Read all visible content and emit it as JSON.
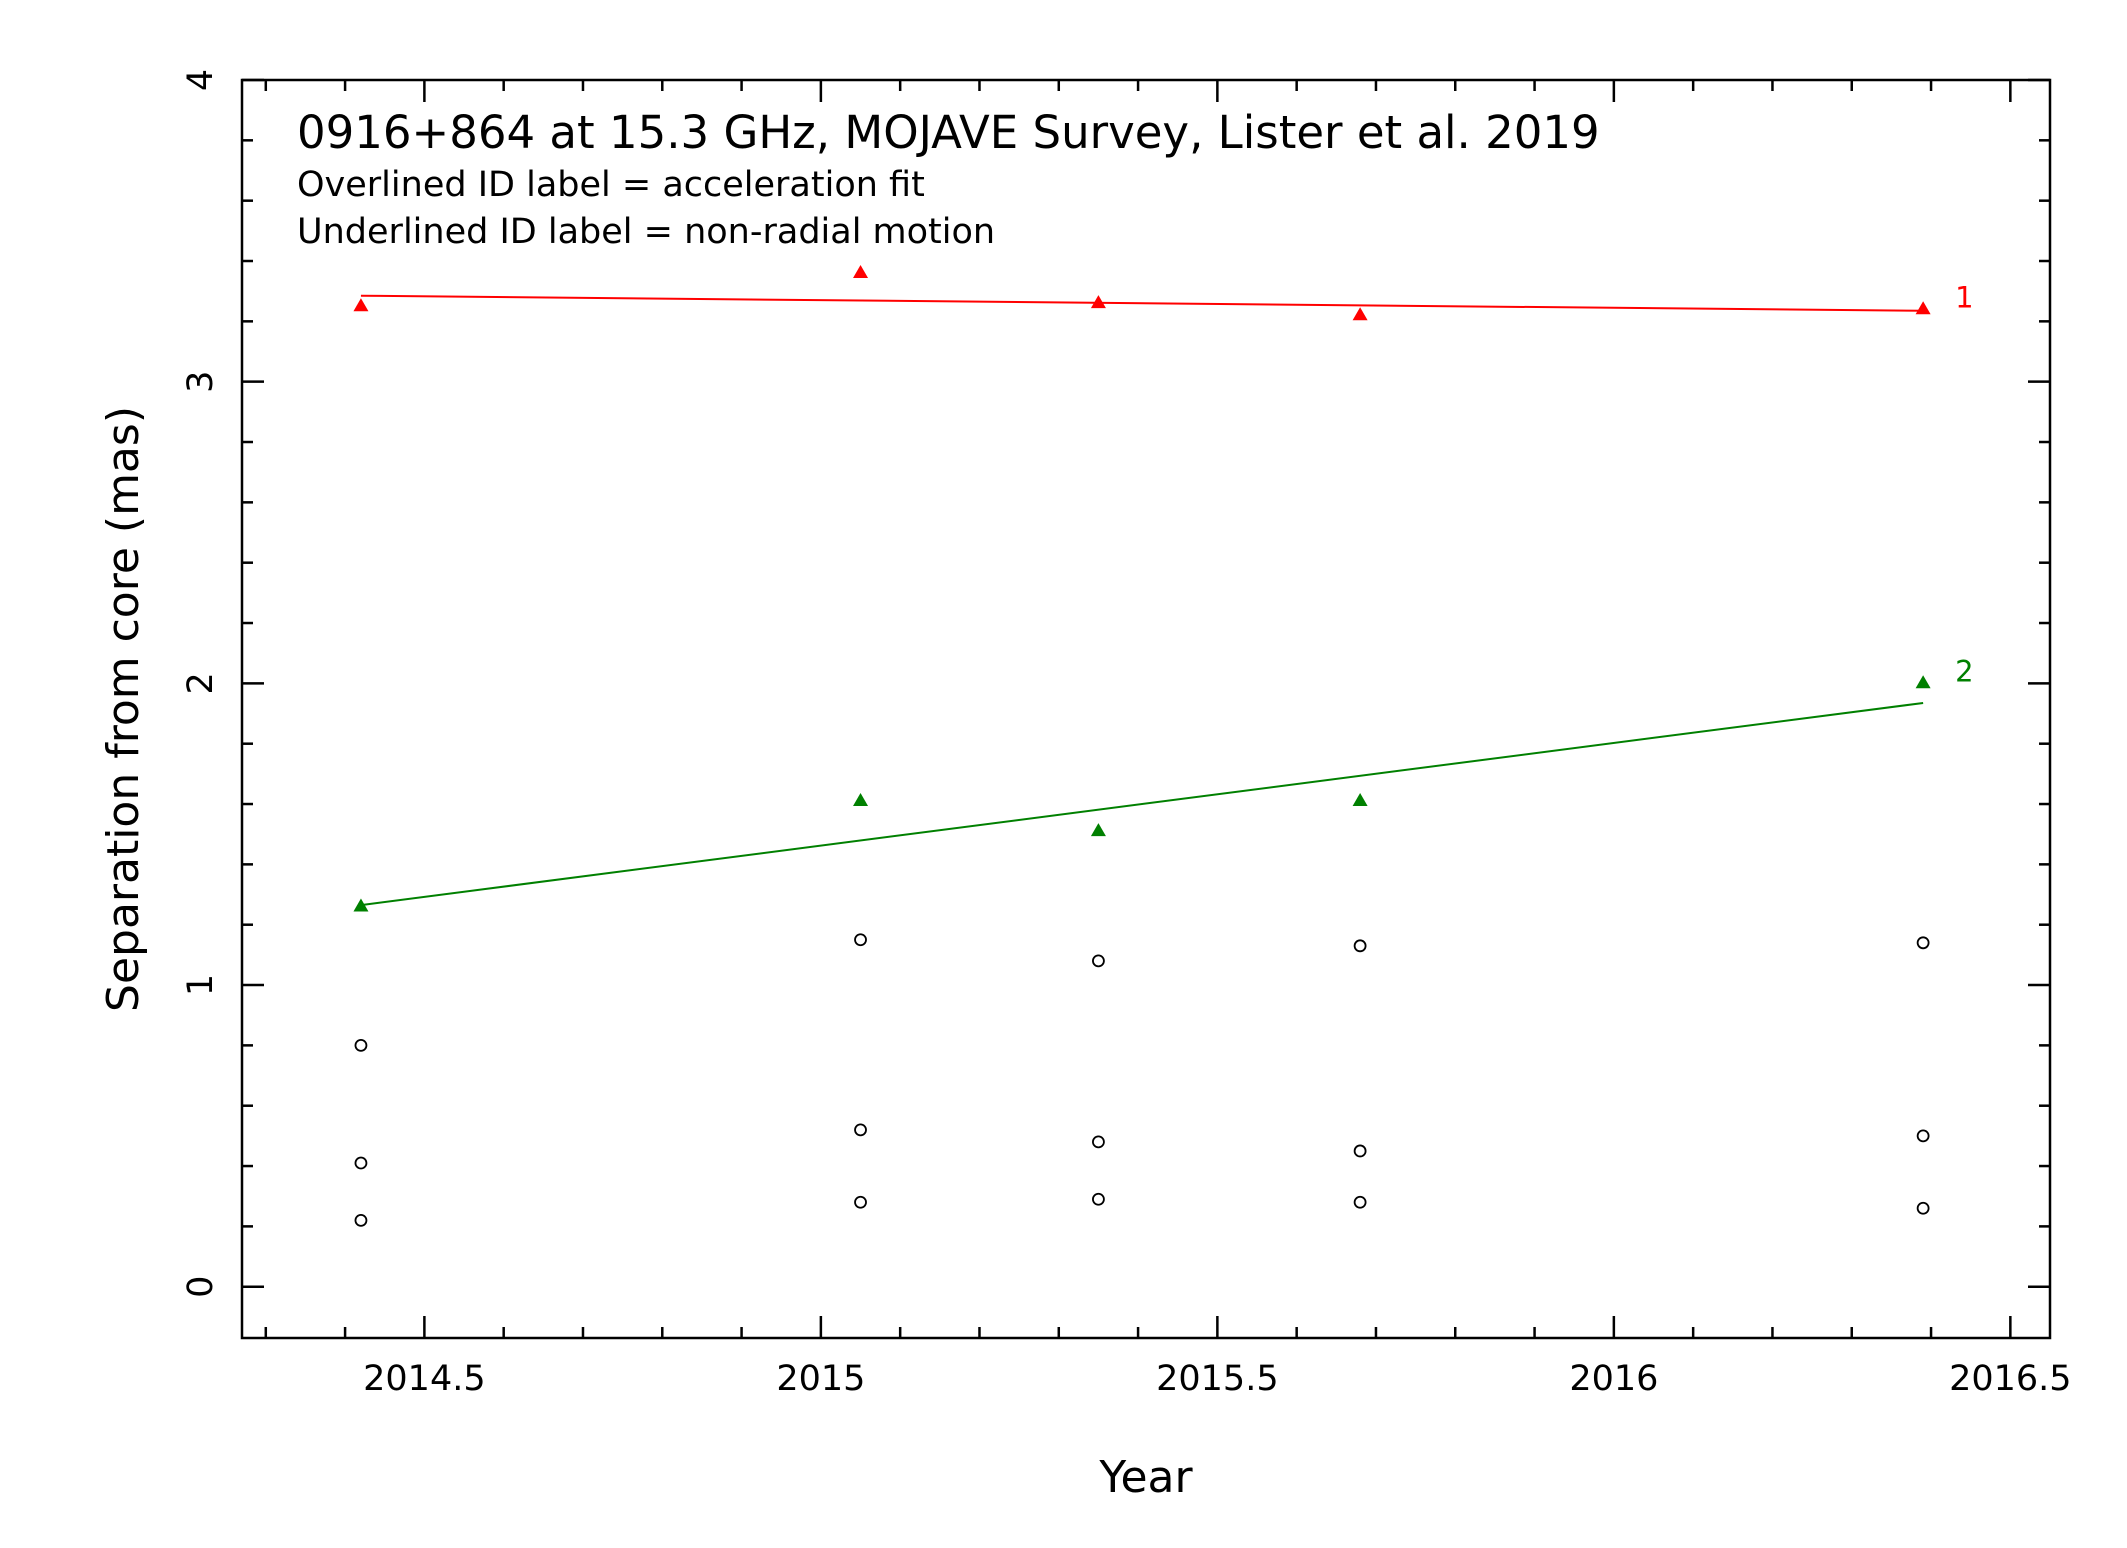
{
  "chart_data": {
    "type": "scatter",
    "title": "0916+864 at 15.3 GHz, MOJAVE Survey, Lister et al. 2019",
    "subtitles": [
      "Overlined ID label = acceleration fit",
      "Underlined ID label = non-radial motion"
    ],
    "xlabel": "Year",
    "ylabel": "Separation from core (mas)",
    "xlim": [
      2014.27,
      2016.55
    ],
    "ylim": [
      -0.17,
      4.0
    ],
    "x_ticks": [
      2014.5,
      2015,
      2015.5,
      2016,
      2016.5
    ],
    "x_tick_labels": [
      "2014.5",
      "2015",
      "2015.5",
      "2016",
      "2016.5"
    ],
    "y_ticks": [
      0,
      1,
      2,
      3,
      4
    ],
    "y_tick_labels": [
      "0",
      "1",
      "2",
      "3",
      "4"
    ],
    "grid": false,
    "series": [
      {
        "name": "1",
        "color": "#ff0000",
        "marker": "triangle",
        "x": [
          2014.42,
          2015.05,
          2015.35,
          2015.68,
          2016.39
        ],
        "y": [
          3.25,
          3.36,
          3.26,
          3.22,
          3.24
        ],
        "fit": {
          "x": [
            2014.42,
            2016.39
          ],
          "y": [
            3.285,
            3.235
          ]
        }
      },
      {
        "name": "2",
        "color": "#008000",
        "marker": "triangle",
        "x": [
          2014.42,
          2015.05,
          2015.35,
          2015.68,
          2016.39
        ],
        "y": [
          1.26,
          1.61,
          1.51,
          1.61,
          2.0
        ],
        "fit": {
          "x": [
            2014.42,
            2016.39
          ],
          "y": [
            1.265,
            1.935
          ]
        }
      },
      {
        "color": "#000000",
        "marker": "open-circle",
        "x": [
          2014.42,
          2014.42,
          2014.42,
          2015.05,
          2015.05,
          2015.05,
          2015.35,
          2015.35,
          2015.35,
          2015.68,
          2015.68,
          2015.68,
          2016.39,
          2016.39,
          2016.39
        ],
        "y": [
          0.8,
          0.41,
          0.22,
          1.15,
          0.52,
          0.28,
          1.08,
          0.48,
          0.29,
          1.13,
          0.45,
          0.28,
          1.14,
          0.5,
          0.26
        ]
      }
    ]
  }
}
